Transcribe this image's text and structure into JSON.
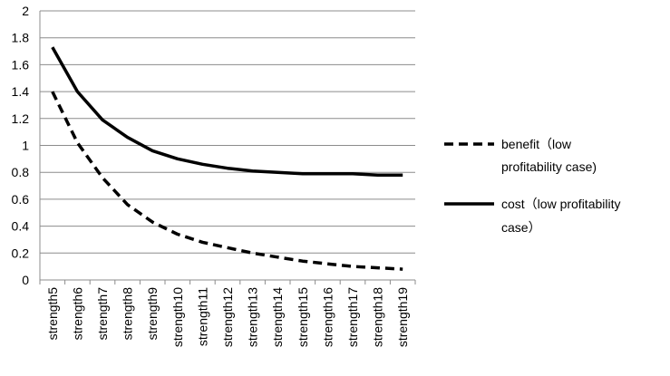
{
  "chart_data": {
    "type": "line",
    "categories": [
      "strength5",
      "strength6",
      "strength7",
      "strength8",
      "strength9",
      "strength10",
      "strength11",
      "strength12",
      "strength13",
      "strength14",
      "strength15",
      "strength16",
      "strength17",
      "strength18",
      "strength19"
    ],
    "series": [
      {
        "name_lines": [
          "benefit（low",
          "profitability case)"
        ],
        "style": "dashed",
        "color": "#000000",
        "values": [
          1.4,
          1.02,
          0.76,
          0.56,
          0.43,
          0.34,
          0.28,
          0.24,
          0.2,
          0.17,
          0.14,
          0.12,
          0.1,
          0.09,
          0.08
        ]
      },
      {
        "name_lines": [
          "cost（low profitability",
          "case）"
        ],
        "style": "solid",
        "color": "#000000",
        "values": [
          1.73,
          1.4,
          1.19,
          1.06,
          0.96,
          0.9,
          0.86,
          0.83,
          0.81,
          0.8,
          0.79,
          0.79,
          0.79,
          0.78,
          0.78
        ]
      }
    ],
    "ylim": [
      0,
      2
    ],
    "yticks": [
      "0",
      "0.2",
      "0.4",
      "0.6",
      "0.8",
      "1",
      "1.2",
      "1.4",
      "1.6",
      "1.8",
      "2"
    ],
    "grid": "horizontal",
    "legend": "right"
  }
}
